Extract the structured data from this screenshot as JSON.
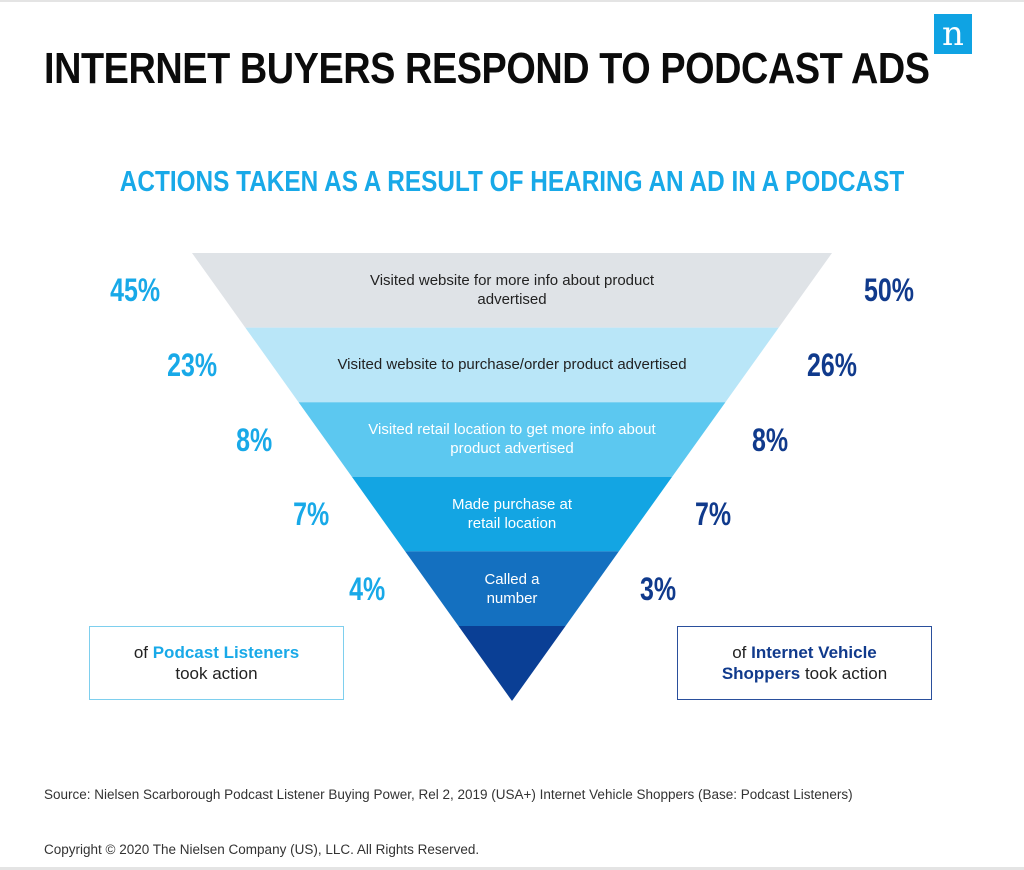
{
  "logo_letter": "n",
  "title": "INTERNET BUYERS RESPOND TO PODCAST ADS",
  "chart_data": {
    "type": "funnel",
    "title": "ACTIONS TAKEN AS A RESULT OF HEARING AN AD IN A PODCAST",
    "categories": [
      "Visited website for more info about product advertised",
      "Visited website to purchase/order product advertised",
      "Visited retail location to get more info about product advertised",
      "Made purchase at retail location",
      "Called a number"
    ],
    "series": [
      {
        "name": "Podcast Listeners",
        "values": [
          45,
          23,
          8,
          7,
          4
        ],
        "labels": [
          "45%",
          "23%",
          "8%",
          "7%",
          "4%"
        ],
        "color": "#18a9e8"
      },
      {
        "name": "Internet Vehicle Shoppers",
        "values": [
          50,
          26,
          8,
          7,
          3
        ],
        "labels": [
          "50%",
          "26%",
          "8%",
          "7%",
          "3%"
        ],
        "color": "#103a8c"
      }
    ],
    "band_colors": [
      "#dfe3e7",
      "#b9e6f8",
      "#5cc8f0",
      "#13a5e3",
      "#1470c0",
      "#0a3f95"
    ]
  },
  "legend": {
    "left": {
      "prefix": "of ",
      "highlight": "Podcast Listeners",
      "suffix": "took action"
    },
    "right": {
      "prefix": "of ",
      "highlight1": "Internet Vehicle",
      "highlight2": "Shoppers",
      "suffix": " took action"
    }
  },
  "source": "Source: Nielsen Scarborough Podcast Listener Buying Power, Rel 2, 2019 (USA+) Internet Vehicle Shoppers (Base: Podcast Listeners)",
  "copyright": "Copyright © 2020 The Nielsen Company (US), LLC. All Rights Reserved."
}
